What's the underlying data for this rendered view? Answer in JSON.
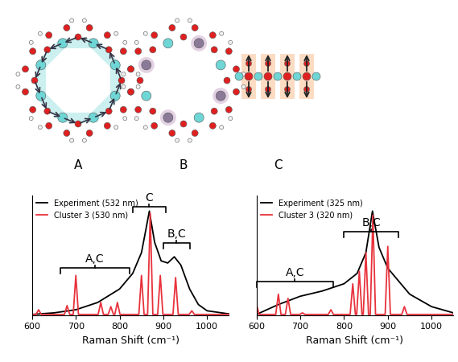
{
  "diagram": {
    "labels": [
      "A",
      "B",
      "C"
    ]
  },
  "chart_data": [
    {
      "type": "line",
      "x_label": "Raman Shift (cm⁻¹)",
      "xlim": [
        600,
        1050
      ],
      "xticks": [
        600,
        700,
        800,
        900,
        1000
      ],
      "ylim": [
        0,
        115
      ],
      "tick_labels": "x",
      "legend": "upper left",
      "series": [
        {
          "name": "Experiment (532 nm)",
          "color": "#000000",
          "x": [
            600,
            650,
            700,
            750,
            800,
            830,
            850,
            860,
            868,
            880,
            895,
            910,
            925,
            940,
            960,
            980,
            1000,
            1050
          ],
          "values": [
            0.5,
            2,
            5,
            12,
            25,
            40,
            60,
            82,
            100,
            70,
            52,
            50,
            56,
            48,
            25,
            10,
            4,
            1
          ]
        },
        {
          "name": "Cluster 3 (530 nm)",
          "color": "#e8323c",
          "x": [
            600,
            609,
            615,
            621,
            674,
            680,
            686,
            694,
            700,
            706,
            751,
            757,
            763,
            774,
            780,
            786,
            789,
            795,
            801,
            844,
            850,
            856,
            864,
            870,
            876,
            887,
            893,
            899,
            922,
            928,
            934,
            959,
            965,
            971,
            1050
          ],
          "values": [
            0.5,
            0.5,
            5,
            0.5,
            0.5,
            9,
            0.5,
            0.5,
            38,
            0.5,
            0.5,
            12,
            0.5,
            0.5,
            8,
            0.5,
            0.5,
            12,
            0.5,
            0.5,
            38,
            0.5,
            0.5,
            98,
            0.5,
            0.5,
            38,
            0.5,
            0.5,
            36,
            0.5,
            0.5,
            4,
            0.5,
            0.5
          ]
        }
      ],
      "annotations": [
        {
          "text": "A,C",
          "x_start": 665,
          "x_end": 822,
          "y": 45
        },
        {
          "text": "C",
          "x_start": 830,
          "x_end": 905,
          "y": 104
        },
        {
          "text": "B,C",
          "x_start": 900,
          "x_end": 960,
          "y": 69
        }
      ]
    },
    {
      "type": "line",
      "x_label": "Raman Shift (cm⁻¹)",
      "xlim": [
        600,
        1050
      ],
      "xticks": [
        600,
        700,
        800,
        900,
        1000
      ],
      "ylim": [
        0,
        115
      ],
      "tick_labels": "x",
      "legend": "upper left",
      "series": [
        {
          "name": "Experiment (325 nm)",
          "color": "#000000",
          "x": [
            600,
            650,
            700,
            750,
            800,
            830,
            850,
            865,
            880,
            900,
            920,
            950,
            1000,
            1050
          ],
          "values": [
            0.5,
            10,
            18,
            23,
            30,
            40,
            60,
            100,
            65,
            45,
            35,
            20,
            8,
            2
          ]
        },
        {
          "name": "Cluster 3 (320 nm)",
          "color": "#e8323c",
          "x": [
            600,
            606,
            644,
            650,
            656,
            666,
            672,
            678,
            699,
            705,
            711,
            764,
            770,
            776,
            814,
            820,
            826,
            829,
            835,
            841,
            844,
            850,
            856,
            860,
            866,
            872,
            894,
            900,
            906,
            932,
            938,
            944,
            1050
          ],
          "values": [
            10,
            0.5,
            0.5,
            20,
            0.5,
            0.5,
            16,
            0.5,
            0.5,
            2,
            0.5,
            0.5,
            5,
            0.5,
            0.5,
            30,
            0.5,
            0.5,
            42,
            0.5,
            0.5,
            60,
            0.5,
            0.5,
            96,
            0.5,
            0.5,
            66,
            0.5,
            0.5,
            8,
            0.5,
            0.5
          ]
        }
      ],
      "annotations": [
        {
          "text": "A,C",
          "x_start": 600,
          "x_end": 775,
          "y": 32
        },
        {
          "text": "B,C",
          "x_start": 800,
          "x_end": 925,
          "y": 80
        }
      ]
    }
  ]
}
